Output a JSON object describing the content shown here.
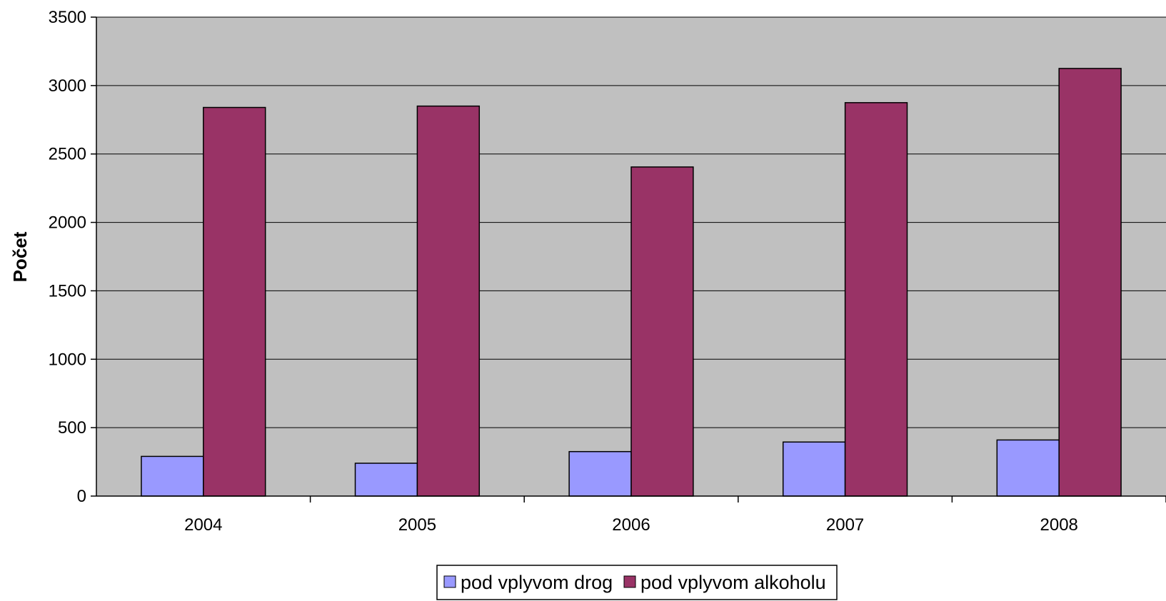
{
  "chart_data": {
    "type": "bar",
    "title": "",
    "xlabel": "",
    "ylabel": "Počet",
    "categories": [
      "2004",
      "2005",
      "2006",
      "2007",
      "2008"
    ],
    "series": [
      {
        "name": "pod vplyvom drog",
        "values": [
          290,
          240,
          325,
          395,
          410
        ],
        "color": "#9999ff"
      },
      {
        "name": "pod vplyvom alkoholu",
        "values": [
          2840,
          2850,
          2405,
          2875,
          3125
        ],
        "color": "#993366"
      }
    ],
    "ylim": [
      0,
      3500
    ],
    "yticks": [
      "0",
      "500",
      "1000",
      "1500",
      "2000",
      "2500",
      "3000",
      "3500"
    ],
    "grid": true,
    "legend_position": "bottom",
    "plot_background": "#c0c0c0"
  }
}
